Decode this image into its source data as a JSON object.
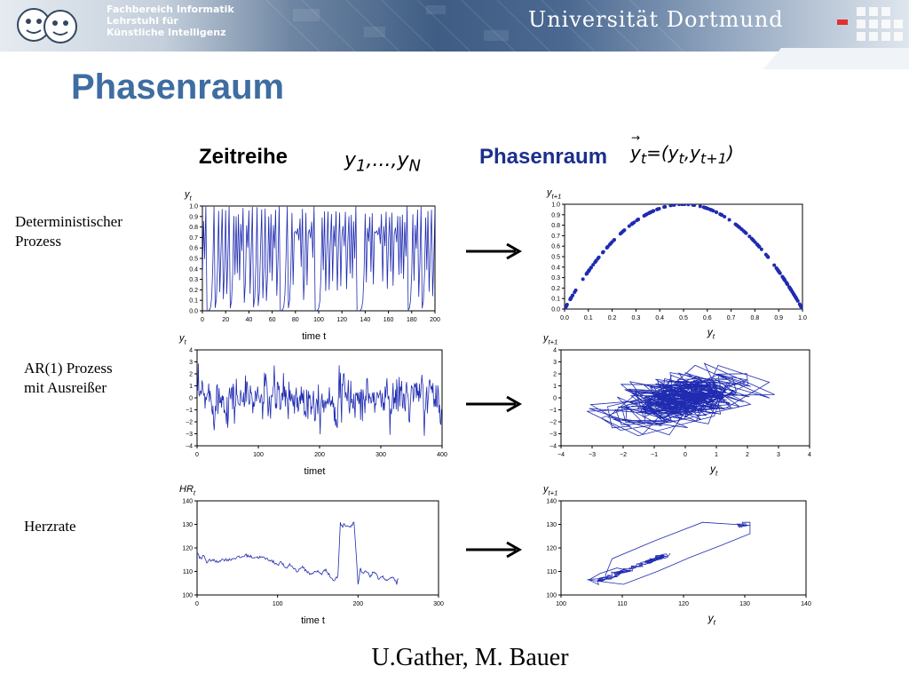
{
  "header": {
    "dept_lines": [
      "Fachbereich Informatik",
      "Lehrstuhl für",
      "Künstliche Intelligenz"
    ],
    "university": "Universität Dortmund"
  },
  "slide": {
    "title": "Phasenraum",
    "col_left": "Zeitreihe",
    "col_right": "Phasenraum",
    "footer": "U.Gather, M. Bauer"
  },
  "rows": [
    {
      "label_lines": [
        "Deterministischer",
        "Prozess"
      ]
    },
    {
      "label_lines": [
        "AR(1) Prozess",
        "mit Ausreißer"
      ]
    },
    {
      "label_lines": [
        "Herzrate"
      ]
    }
  ],
  "chart_data": [
    {
      "type": "line",
      "ylabel": "y_t",
      "xlabel": "time t",
      "xlim": [
        0,
        200
      ],
      "ylim": [
        0,
        1
      ],
      "xticks": [
        0,
        20,
        40,
        60,
        80,
        100,
        120,
        140,
        160,
        180,
        200
      ],
      "yticks": [
        0,
        0.1,
        0.2,
        0.3,
        0.4,
        0.5,
        0.6,
        0.7,
        0.8,
        0.9,
        1
      ],
      "ytick_labels": [
        "0.0",
        "0.1",
        "0.2",
        "0.3",
        "0.4",
        "0.5",
        "0.6",
        "0.7",
        "0.8",
        "0.9",
        "1.0"
      ],
      "color": "#1f2bb0",
      "series": [
        {
          "generator": "logistic map",
          "r": 4,
          "y0": 0.31,
          "n": 201
        }
      ]
    },
    {
      "type": "scatter",
      "ylabel": "y_{t+1}",
      "xlabel": "y_t",
      "xlim": [
        0,
        1
      ],
      "ylim": [
        0,
        1
      ],
      "xticks": [
        0,
        0.1,
        0.2,
        0.3,
        0.4,
        0.5,
        0.6,
        0.7,
        0.8,
        0.9,
        1
      ],
      "xtick_labels": [
        "0.0",
        "0.1",
        "0.2",
        "0.3",
        "0.4",
        "0.5",
        "0.6",
        "0.7",
        "0.8",
        "0.9",
        "1.0"
      ],
      "yticks": [
        0,
        0.1,
        0.2,
        0.3,
        0.4,
        0.5,
        0.6,
        0.7,
        0.8,
        0.9,
        1
      ],
      "ytick_labels": [
        "0.0",
        "0.1",
        "0.2",
        "0.3",
        "0.4",
        "0.5",
        "0.6",
        "0.7",
        "0.8",
        "0.9",
        "1.0"
      ],
      "color": "#1f2bb0",
      "series": [
        {
          "relation": "y_{t+1} = 4 y_t (1 - y_t)"
        }
      ]
    },
    {
      "type": "line",
      "ylabel": "y_t",
      "xlabel": "timet",
      "xlim": [
        0,
        400
      ],
      "ylim": [
        -4,
        4
      ],
      "xticks": [
        0,
        100,
        200,
        300,
        400
      ],
      "yticks": [
        -4,
        -3,
        -2,
        -1,
        0,
        1,
        2,
        3,
        4
      ],
      "ytick_labels": [
        "−4",
        "−3",
        "−2",
        "−1",
        "0",
        "1",
        "2",
        "3",
        "4"
      ],
      "color": "#1f2bb0",
      "series": [
        {
          "generator": "AR(1) with outliers",
          "phi": 0.3,
          "n": 400
        }
      ]
    },
    {
      "type": "line",
      "ylabel": "y_{t+1}",
      "xlabel": "y_t",
      "xlim": [
        -4,
        4
      ],
      "ylim": [
        -4,
        4
      ],
      "xticks": [
        -4,
        -3,
        -2,
        -1,
        0,
        1,
        2,
        3,
        4
      ],
      "xtick_labels": [
        "−4",
        "−3",
        "−2",
        "−1",
        "0",
        "1",
        "2",
        "3",
        "4"
      ],
      "yticks": [
        -4,
        -3,
        -2,
        -1,
        0,
        1,
        2,
        3,
        4
      ],
      "ytick_labels": [
        "−4",
        "−3",
        "−2",
        "−1",
        "0",
        "1",
        "2",
        "3",
        "4"
      ],
      "color": "#1f2bb0",
      "series": [
        {
          "relation": "(y_t, y_{t+1}) pairs of the AR(1) series"
        }
      ]
    },
    {
      "type": "line",
      "ylabel": "HR_t",
      "xlabel": "time t",
      "xlim": [
        0,
        300
      ],
      "ylim": [
        100,
        140
      ],
      "xticks": [
        0,
        100,
        200,
        300
      ],
      "yticks": [
        100,
        110,
        120,
        130,
        140
      ],
      "color": "#1f2bb0",
      "series": [
        {
          "name": "",
          "x": [
            0,
            5,
            8,
            12,
            18,
            25,
            30,
            40,
            50,
            55,
            60,
            70,
            80,
            90,
            100,
            105,
            110,
            115,
            125,
            130,
            140,
            150,
            155,
            160,
            165,
            170,
            175,
            178,
            180,
            183,
            190,
            195,
            198,
            200,
            203,
            205,
            210,
            215,
            220,
            225,
            230,
            235,
            240,
            245,
            248,
            250
          ],
          "y": [
            118,
            115,
            117,
            114,
            115,
            114,
            115,
            115,
            116,
            116,
            117,
            116,
            116,
            115,
            113,
            114,
            111,
            113,
            110,
            112,
            109,
            110,
            109,
            111,
            108,
            106,
            108,
            131,
            129,
            130,
            129,
            131,
            116,
            104,
            111,
            109,
            110,
            108,
            110,
            107,
            108,
            106,
            107,
            107,
            105,
            107
          ]
        }
      ]
    },
    {
      "type": "line",
      "ylabel": "y_{t+1}",
      "xlabel": "y_t",
      "xlim": [
        100,
        140
      ],
      "ylim": [
        100,
        140
      ],
      "xticks": [
        100,
        110,
        120,
        130,
        140
      ],
      "yticks": [
        100,
        110,
        120,
        130,
        140
      ],
      "color": "#1f2bb0",
      "series": [
        {
          "relation": "(y_t, y_{t+1}) pairs of the heart-rate series"
        }
      ]
    }
  ]
}
